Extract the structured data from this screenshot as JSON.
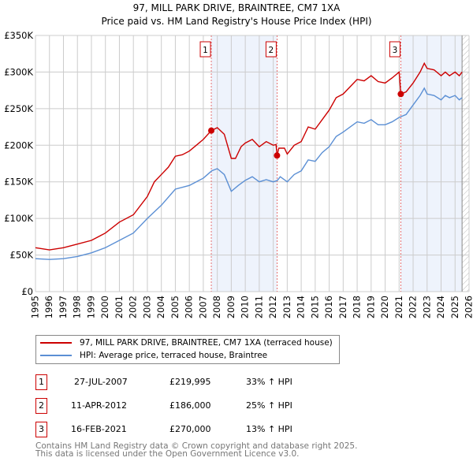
{
  "chart_data": {
    "type": "line",
    "title": "97, MILL PARK DRIVE, BRAINTREE, CM7 1XA",
    "subtitle": "Price paid vs. HM Land Registry's House Price Index (HPI)",
    "xlim": [
      1995,
      2026
    ],
    "ylim": [
      0,
      350000
    ],
    "x_ticks": [
      "1995",
      "1996",
      "1997",
      "1998",
      "1999",
      "2000",
      "2001",
      "2002",
      "2003",
      "2004",
      "2005",
      "2006",
      "2007",
      "2008",
      "2009",
      "2010",
      "2011",
      "2012",
      "2013",
      "2014",
      "2015",
      "2016",
      "2017",
      "2018",
      "2019",
      "2020",
      "2021",
      "2022",
      "2023",
      "2024",
      "2025",
      "2026"
    ],
    "y_ticks": [
      {
        "v": 0,
        "label": "£0"
      },
      {
        "v": 50000,
        "label": "£50K"
      },
      {
        "v": 100000,
        "label": "£100K"
      },
      {
        "v": 150000,
        "label": "£150K"
      },
      {
        "v": 200000,
        "label": "£200K"
      },
      {
        "v": 250000,
        "label": "£250K"
      },
      {
        "v": 300000,
        "label": "£300K"
      },
      {
        "v": 350000,
        "label": "£350K"
      }
    ],
    "grid": true,
    "shaded_ranges": [
      [
        2007.57,
        2012.27
      ],
      [
        2021.12,
        2025.5
      ]
    ],
    "forecast_hatch_from": 2025.5,
    "series": [
      {
        "name": "97, MILL PARK DRIVE, BRAINTREE, CM7 1XA (terraced house)",
        "color": "#cc0000",
        "x": [
          1995,
          1996,
          1997,
          1998,
          1999,
          2000,
          2001,
          2002,
          2003,
          2003.5,
          2004,
          2004.5,
          2005,
          2005.5,
          2006,
          2006.5,
          2007,
          2007.57,
          2008,
          2008.5,
          2009,
          2009.3,
          2009.7,
          2010,
          2010.5,
          2011,
          2011.5,
          2012,
          2012.2,
          2012.27,
          2012.4,
          2012.8,
          2013,
          2013.5,
          2014,
          2014.5,
          2015,
          2015.5,
          2016,
          2016.5,
          2017,
          2017.5,
          2018,
          2018.5,
          2019,
          2019.5,
          2020,
          2020.5,
          2021.0,
          2021.12,
          2021.5,
          2022,
          2022.5,
          2022.8,
          2023,
          2023.5,
          2024,
          2024.3,
          2024.6,
          2025,
          2025.3,
          2025.5
        ],
        "values": [
          60000,
          57000,
          60000,
          65000,
          70000,
          80000,
          95000,
          105000,
          130000,
          150000,
          160000,
          170000,
          185000,
          187000,
          192000,
          200000,
          208000,
          220000,
          224000,
          215000,
          182000,
          182000,
          198000,
          203000,
          208000,
          198000,
          205000,
          200000,
          201000,
          186000,
          196000,
          196000,
          188000,
          200000,
          205000,
          225000,
          222000,
          235000,
          248000,
          265000,
          270000,
          280000,
          290000,
          288000,
          295000,
          287000,
          285000,
          292000,
          300000,
          270000,
          273000,
          285000,
          300000,
          312000,
          305000,
          303000,
          295000,
          300000,
          295000,
          300000,
          295000,
          300000
        ]
      },
      {
        "name": "HPI: Average price, terraced house, Braintree",
        "color": "#5b8fd4",
        "x": [
          1995,
          1996,
          1997,
          1998,
          1999,
          2000,
          2001,
          2002,
          2003,
          2004,
          2005,
          2006,
          2007,
          2007.6,
          2008,
          2008.5,
          2009,
          2009.5,
          2010,
          2010.5,
          2011,
          2011.5,
          2012,
          2012.3,
          2012.5,
          2013,
          2013.5,
          2014,
          2014.5,
          2015,
          2015.5,
          2016,
          2016.5,
          2017,
          2017.5,
          2018,
          2018.5,
          2019,
          2019.5,
          2020,
          2020.5,
          2021,
          2021.5,
          2022,
          2022.5,
          2022.8,
          2023,
          2023.5,
          2024,
          2024.3,
          2024.6,
          2025,
          2025.3,
          2025.5
        ],
        "values": [
          45000,
          44000,
          45000,
          48000,
          53000,
          60000,
          70000,
          80000,
          100000,
          118000,
          140000,
          145000,
          155000,
          165000,
          168000,
          160000,
          137000,
          145000,
          152000,
          157000,
          150000,
          153000,
          150000,
          152000,
          157000,
          150000,
          160000,
          165000,
          180000,
          178000,
          190000,
          198000,
          212000,
          218000,
          225000,
          232000,
          230000,
          235000,
          228000,
          228000,
          232000,
          238000,
          242000,
          255000,
          268000,
          278000,
          270000,
          268000,
          262000,
          268000,
          265000,
          268000,
          262000,
          265000
        ]
      }
    ],
    "sales": [
      {
        "label": "1",
        "x": 2007.57,
        "value": 219995,
        "date": "27-JUL-2007",
        "price": "£219,995",
        "delta": "33% ↑ HPI"
      },
      {
        "label": "2",
        "x": 2012.27,
        "value": 186000,
        "date": "11-APR-2012",
        "price": "£186,000",
        "delta": "25% ↑ HPI"
      },
      {
        "label": "3",
        "x": 2021.12,
        "value": 270000,
        "date": "16-FEB-2021",
        "price": "£270,000",
        "delta": "13% ↑ HPI"
      }
    ],
    "legend_placement": "bottom"
  },
  "footer": [
    "Contains HM Land Registry data © Crown copyright and database right 2025.",
    "This data is licensed under the Open Government Licence v3.0."
  ]
}
